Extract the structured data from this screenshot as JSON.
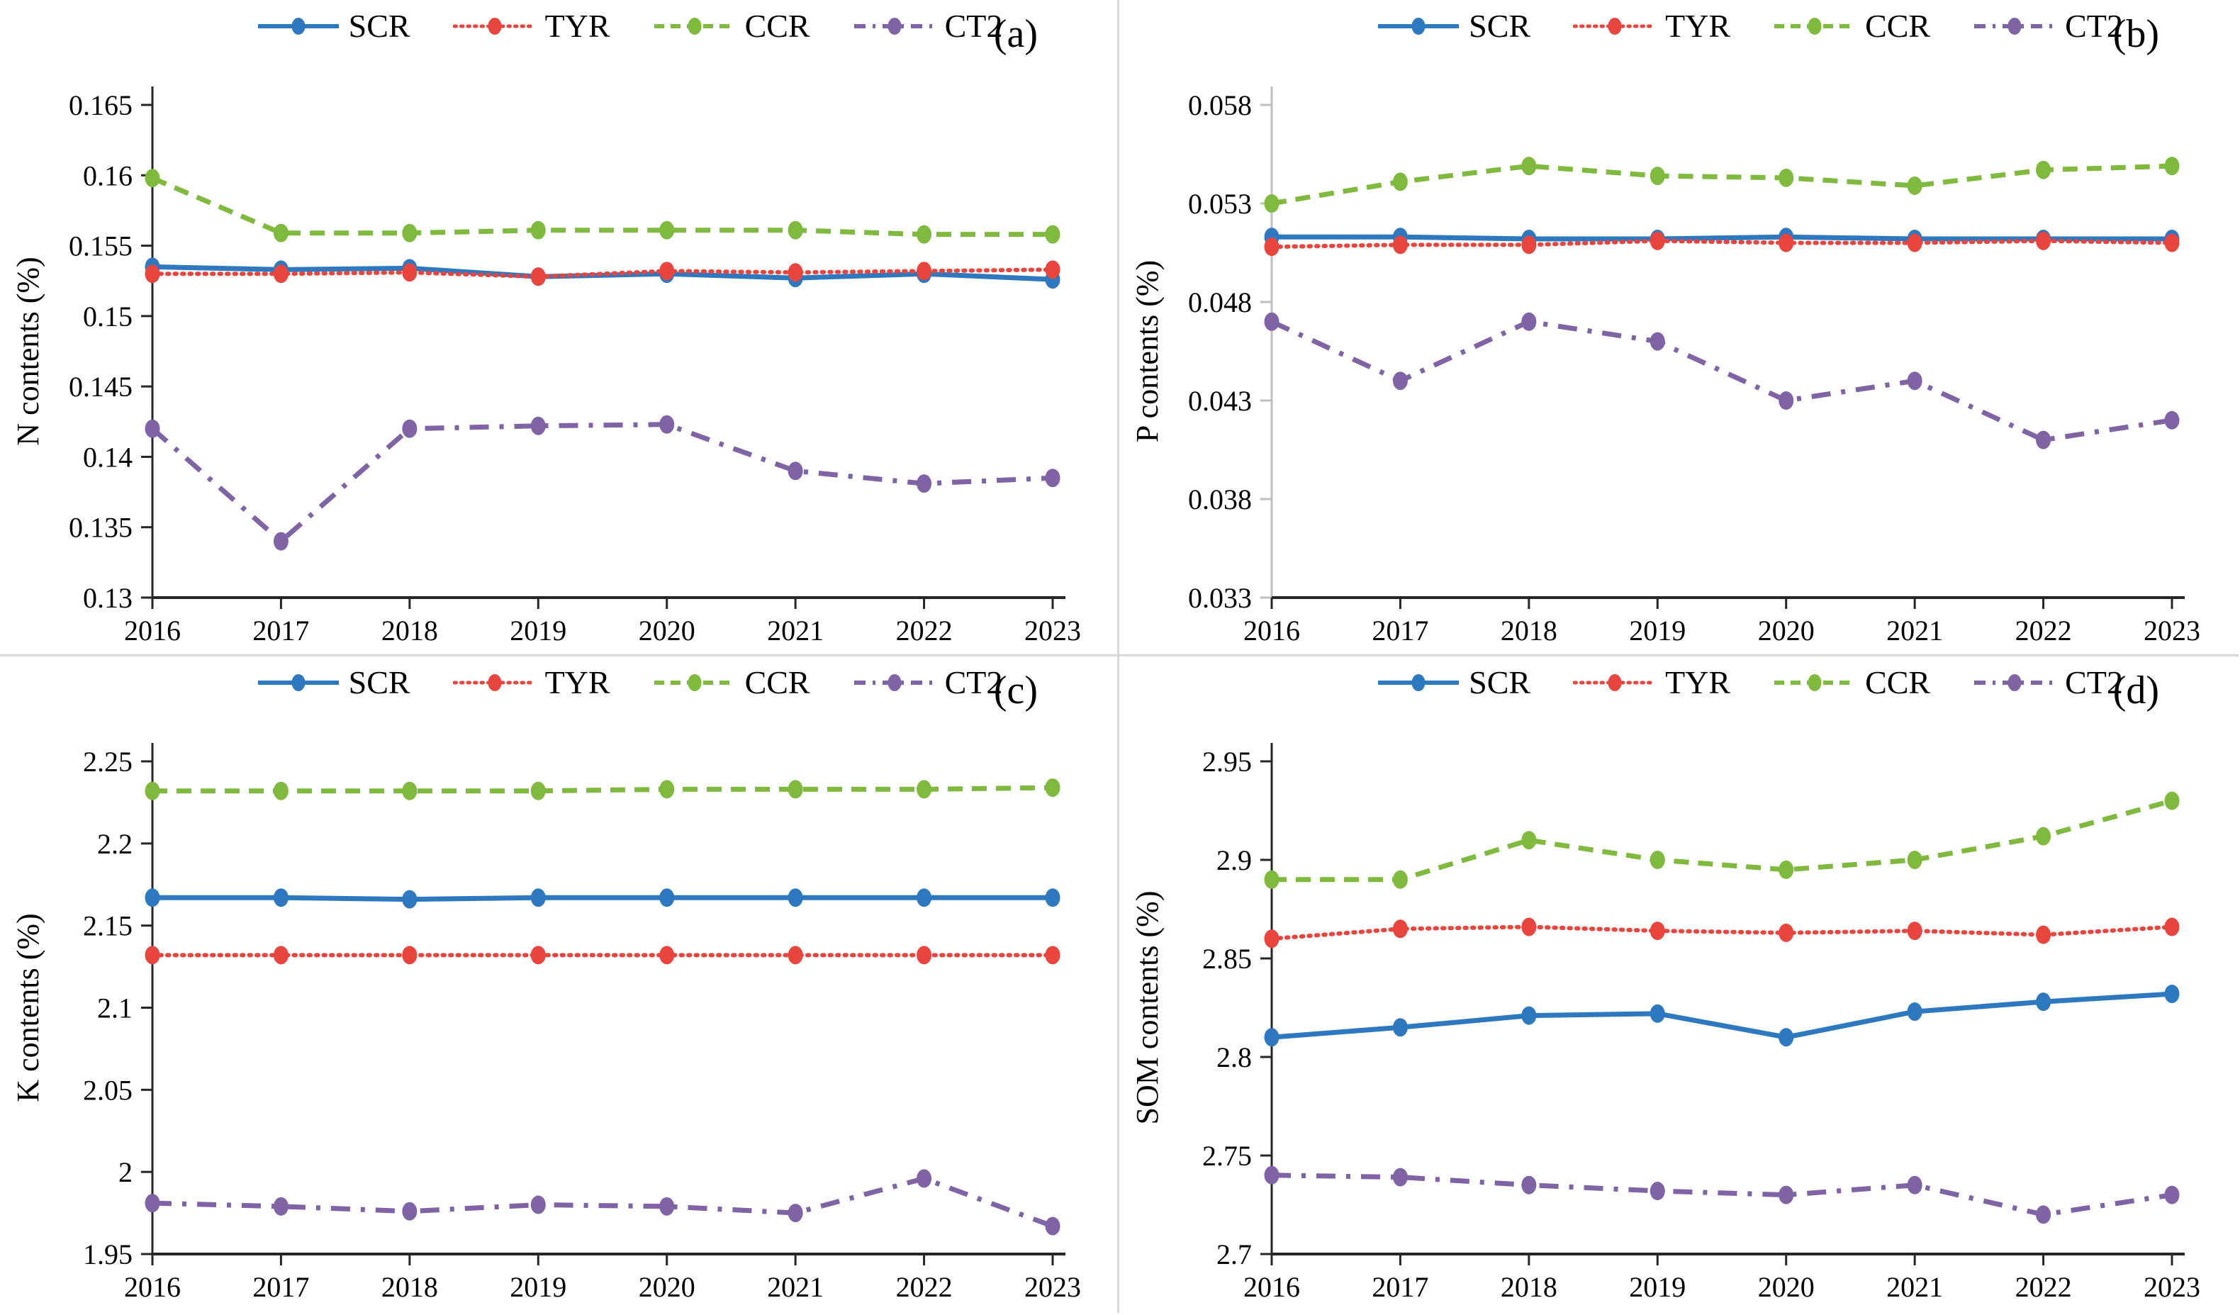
{
  "legend": [
    {
      "label": "SCR",
      "color": "#2E78C0",
      "style": "solid"
    },
    {
      "label": "TYR",
      "color": "#E8453F",
      "style": "dotted"
    },
    {
      "label": "CCR",
      "color": "#7FBA3F",
      "style": "dashed"
    },
    {
      "label": "CT2",
      "color": "#8063A5",
      "style": "dashdot"
    }
  ],
  "axis_colors": {
    "default": "#262626",
    "light": "#BFBFBF"
  },
  "chart_data": [
    {
      "type": "line",
      "label": "(a)",
      "ylabel": "N contents (%)",
      "ylim": [
        0.13,
        0.165
      ],
      "ystep": 0.005,
      "decimals": 3,
      "grid": false,
      "legend_position": "top-center",
      "yaxis": "default",
      "categories": [
        2016,
        2017,
        2018,
        2019,
        2020,
        2021,
        2022,
        2023
      ],
      "series": [
        {
          "name": "SCR",
          "values": [
            0.1535,
            0.1533,
            0.1534,
            0.1528,
            0.153,
            0.1527,
            0.153,
            0.1526
          ]
        },
        {
          "name": "TYR",
          "values": [
            0.153,
            0.153,
            0.1531,
            0.1528,
            0.1532,
            0.1531,
            0.1532,
            0.1533
          ]
        },
        {
          "name": "CCR",
          "values": [
            0.1598,
            0.1559,
            0.1559,
            0.1561,
            0.1561,
            0.1561,
            0.1558,
            0.1558
          ]
        },
        {
          "name": "CT2",
          "values": [
            0.142,
            0.134,
            0.142,
            0.1422,
            0.1423,
            0.139,
            0.1381,
            0.1385
          ]
        }
      ]
    },
    {
      "type": "line",
      "label": "(b)",
      "ylabel": "P contents (%)",
      "ylim": [
        0.033,
        0.058
      ],
      "ystep": 0.005,
      "decimals": 3,
      "grid": false,
      "legend_position": "top-center",
      "yaxis": "light",
      "categories": [
        2016,
        2017,
        2018,
        2019,
        2020,
        2021,
        2022,
        2023
      ],
      "series": [
        {
          "name": "SCR",
          "values": [
            0.0513,
            0.0513,
            0.0512,
            0.0512,
            0.0513,
            0.0512,
            0.0512,
            0.0512
          ]
        },
        {
          "name": "TYR",
          "values": [
            0.0508,
            0.0509,
            0.0509,
            0.0511,
            0.051,
            0.051,
            0.0511,
            0.051
          ]
        },
        {
          "name": "CCR",
          "values": [
            0.053,
            0.0541,
            0.0549,
            0.0544,
            0.0543,
            0.0539,
            0.0547,
            0.0549
          ]
        },
        {
          "name": "CT2",
          "values": [
            0.047,
            0.044,
            0.047,
            0.046,
            0.043,
            0.044,
            0.041,
            0.042
          ]
        }
      ]
    },
    {
      "type": "line",
      "label": "(c)",
      "ylabel": "K contents (%)",
      "ylim": [
        1.95,
        2.25
      ],
      "ystep": 0.05,
      "decimals": 2,
      "grid": false,
      "legend_position": "top-center",
      "yaxis": "default",
      "categories": [
        2016,
        2017,
        2018,
        2019,
        2020,
        2021,
        2022,
        2023
      ],
      "series": [
        {
          "name": "SCR",
          "values": [
            2.167,
            2.167,
            2.166,
            2.167,
            2.167,
            2.167,
            2.167,
            2.167
          ]
        },
        {
          "name": "TYR",
          "values": [
            2.132,
            2.132,
            2.132,
            2.132,
            2.132,
            2.132,
            2.132,
            2.132
          ]
        },
        {
          "name": "CCR",
          "values": [
            2.232,
            2.232,
            2.232,
            2.232,
            2.233,
            2.233,
            2.233,
            2.234
          ]
        },
        {
          "name": "CT2",
          "values": [
            1.981,
            1.979,
            1.976,
            1.98,
            1.979,
            1.975,
            1.996,
            1.967
          ]
        }
      ]
    },
    {
      "type": "line",
      "label": "(d)",
      "ylabel": "SOM contents (%)",
      "ylim": [
        2.7,
        2.95
      ],
      "ystep": 0.05,
      "decimals": 2,
      "grid": false,
      "legend_position": "top-center",
      "yaxis": "default",
      "categories": [
        2016,
        2017,
        2018,
        2019,
        2020,
        2021,
        2022,
        2023
      ],
      "series": [
        {
          "name": "SCR",
          "values": [
            2.81,
            2.815,
            2.821,
            2.822,
            2.81,
            2.823,
            2.828,
            2.832
          ]
        },
        {
          "name": "TYR",
          "values": [
            2.86,
            2.865,
            2.866,
            2.864,
            2.863,
            2.864,
            2.862,
            2.866
          ]
        },
        {
          "name": "CCR",
          "values": [
            2.89,
            2.89,
            2.91,
            2.9,
            2.895,
            2.9,
            2.912,
            2.93
          ]
        },
        {
          "name": "CT2",
          "values": [
            2.74,
            2.739,
            2.735,
            2.732,
            2.73,
            2.735,
            2.72,
            2.73
          ]
        }
      ]
    }
  ]
}
